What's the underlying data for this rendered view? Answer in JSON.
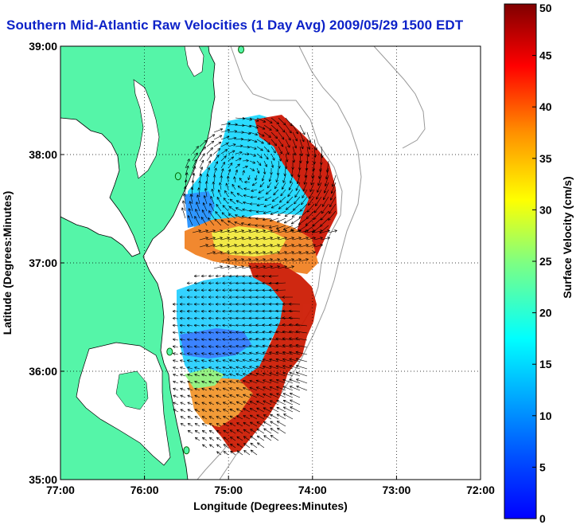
{
  "chart_data": {
    "type": "heatmap",
    "title": "Southern Mid-Atlantic Raw Velocities (1 Day Avg) 2009/05/29 1500 EDT",
    "xlabel": "Longitude (Degrees:Minutes)",
    "ylabel": "Latitude (Degrees:Minutes)",
    "colorbar_label": "Surface Velocity (cm/s)",
    "x_ticks": [
      "77:00",
      "76:00",
      "75:00",
      "74:00",
      "73:00",
      "72:00"
    ],
    "y_ticks": [
      "39:00",
      "38:00",
      "37:00",
      "36:00",
      "35:00"
    ],
    "colorbar_ticks": [
      "50",
      "45",
      "40",
      "35",
      "30",
      "25",
      "20",
      "15",
      "10",
      "5",
      "0"
    ],
    "xlim": [
      -77,
      -72
    ],
    "ylim": [
      35,
      39
    ],
    "clim": [
      0,
      50
    ],
    "grid": true,
    "colormap": "jet",
    "land_color": "#55f5a8",
    "stations": [
      {
        "lon": -74.85,
        "lat": 38.97
      },
      {
        "lon": -75.6,
        "lat": 37.8
      },
      {
        "lon": -75.7,
        "lat": 36.18
      },
      {
        "lon": -75.5,
        "lat": 35.27
      }
    ]
  }
}
